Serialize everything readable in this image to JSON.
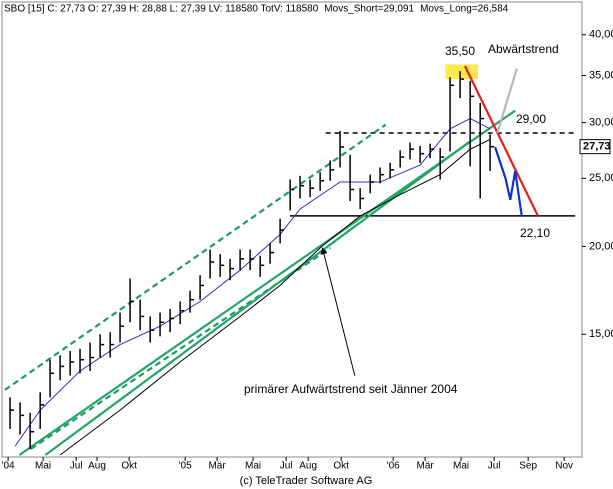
{
  "chart_data": {
    "type": "hlc",
    "header": "SBO [15] C: 27,73 O: 27,39 H: 28,88 L: 27,39 LV: 118580 TotV: 118580",
    "footer": "(c) TeleTrader Software AG",
    "log_scale": true,
    "color": "#000000",
    "xlim": [
      -0.5,
      35.3
    ],
    "ylim": [
      10.1,
      44.1
    ],
    "xticks": [
      {
        "value": 0,
        "label": "'04"
      },
      {
        "value": 2.16,
        "label": "Mai"
      },
      {
        "value": 4.2,
        "label": "Jul"
      },
      {
        "value": 5.49,
        "label": "Aug"
      },
      {
        "value": 7.47,
        "label": "Okt"
      },
      {
        "value": 10.93,
        "label": "'05"
      },
      {
        "value": 12.9,
        "label": "Mär"
      },
      {
        "value": 15.12,
        "label": "Mai"
      },
      {
        "value": 17.16,
        "label": "Jul"
      },
      {
        "value": 18.52,
        "label": "Aug"
      },
      {
        "value": 20.56,
        "label": "Okt"
      },
      {
        "value": 23.77,
        "label": "'06"
      },
      {
        "value": 25.74,
        "label": "Mär"
      },
      {
        "value": 27.96,
        "label": "Mai"
      },
      {
        "value": 30,
        "label": "Jul"
      },
      {
        "value": 32.1,
        "label": "Sep"
      },
      {
        "value": 34.32,
        "label": "Nov"
      }
    ],
    "yticks": [
      {
        "value": 15,
        "label": "15,00"
      },
      {
        "value": 20,
        "label": "20,00"
      },
      {
        "value": 25,
        "label": "25,00"
      },
      {
        "value": 30,
        "label": "30,00"
      },
      {
        "value": 35,
        "label": "35,00"
      },
      {
        "value": 40,
        "label": "40,00"
      }
    ],
    "x": [
      0.12,
      0.74,
      1.36,
      1.98,
      2.59,
      3.21,
      3.83,
      4.44,
      5.06,
      5.68,
      6.3,
      6.91,
      7.53,
      8.15,
      8.77,
      9.38,
      10.0,
      10.62,
      11.23,
      11.85,
      12.47,
      13.09,
      13.7,
      14.32,
      14.94,
      15.56,
      16.17,
      16.79,
      17.41,
      18.02,
      18.64,
      19.26,
      19.88,
      20.49,
      21.11,
      21.73,
      22.35,
      22.96,
      23.58,
      24.2,
      24.81,
      25.43,
      26.05,
      26.67,
      27.28,
      27.9,
      28.52,
      29.14,
      29.75
    ],
    "high": [
      12.2,
      12.0,
      11.6,
      12.4,
      13.8,
      14.0,
      14.2,
      14.3,
      14.6,
      15.0,
      15.1,
      16.1,
      18.0,
      16.8,
      15.9,
      16.1,
      16.3,
      16.7,
      17.3,
      18.2,
      19.8,
      19.5,
      19.2,
      19.8,
      19.8,
      19.4,
      20.2,
      21.9,
      24.9,
      25.2,
      24.9,
      25.5,
      26.5,
      29.2,
      27.0,
      24.2,
      25.3,
      25.9,
      26.3,
      27.4,
      28.1,
      27.8,
      28.0,
      27.6,
      34.8,
      35.5,
      34.4,
      32.0,
      28.88
    ],
    "low": [
      11.0,
      10.8,
      10.3,
      11.0,
      12.2,
      12.9,
      13.1,
      13.2,
      13.3,
      13.9,
      13.9,
      14.6,
      15.6,
      15.2,
      14.6,
      14.9,
      15.1,
      15.5,
      16.1,
      16.8,
      18.0,
      18.1,
      17.9,
      18.5,
      18.5,
      18.1,
      18.9,
      20.2,
      22.5,
      23.4,
      23.5,
      24.0,
      24.8,
      25.9,
      23.2,
      22.6,
      23.8,
      24.6,
      25.0,
      25.9,
      26.6,
      26.3,
      26.7,
      24.9,
      27.3,
      32.5,
      26.0,
      23.4,
      25.6
    ],
    "close": [
      11.7,
      11.5,
      10.9,
      11.9,
      13.2,
      13.5,
      13.7,
      13.8,
      13.9,
      14.5,
      14.5,
      15.4,
      16.7,
      15.9,
      15.2,
      15.6,
      15.8,
      16.2,
      16.8,
      17.6,
      19.0,
      18.8,
      18.6,
      19.2,
      19.2,
      18.8,
      19.6,
      21.1,
      24.1,
      24.4,
      24.2,
      24.8,
      25.7,
      27.7,
      24.1,
      23.4,
      24.7,
      25.3,
      25.7,
      26.8,
      27.5,
      27.1,
      27.5,
      26.8,
      33.9,
      34.6,
      32.7,
      30.4,
      27.73
    ],
    "last_value_label": "27,73",
    "series": [
      {
        "name": "Movs_Short=29,091",
        "color": "#3030c0",
        "x": [
          0.43,
          1.98,
          4.44,
          6.91,
          9.38,
          11.85,
          14.32,
          16.79,
          18.02,
          20.49,
          22.96,
          25.43,
          27.28,
          28.52,
          29.75
        ],
        "values": [
          10.4,
          11.7,
          13.3,
          14.5,
          15.4,
          16.7,
          18.5,
          20.8,
          22.6,
          24.7,
          24.7,
          26.1,
          29.4,
          30.4,
          29.4
        ]
      },
      {
        "name": "Movs_Long=26,584",
        "color": "#000000",
        "x": [
          3.21,
          6.91,
          10.62,
          14.32,
          16.79,
          19.26,
          21.73,
          24.2,
          26.67,
          28.52,
          29.75
        ],
        "values": [
          10.1,
          11.7,
          13.7,
          15.9,
          17.6,
          19.9,
          22.1,
          23.7,
          25.3,
          27.5,
          28.4
        ]
      }
    ],
    "levels": [
      {
        "value": 29,
        "label": "29,00",
        "dashed": true,
        "x": [
          19.6,
          35
        ]
      },
      {
        "value": 22.1,
        "label": "22,10",
        "dashed": false,
        "x": [
          17.4,
          35
        ]
      }
    ],
    "peak": {
      "value": 35.5,
      "label": "35,50",
      "x": [
        27,
        29
      ],
      "y": [
        34.6,
        36.3
      ],
      "color": "#ffe84a"
    },
    "trend_lines": [
      {
        "color": "#1f9a6a",
        "dashed": true,
        "x": [
          -0.2,
          23.3
        ],
        "y": [
          12.5,
          29.8
        ]
      },
      {
        "color": "#1f9a6a",
        "dashed": true,
        "x": [
          1.4,
          19.9
        ],
        "y": [
          10.3,
          19.9
        ]
      },
      {
        "color": "#23a565",
        "dashed": false,
        "x": [
          0.7,
          31.3
        ],
        "y": [
          10.1,
          31.2
        ]
      },
      {
        "color": "#23a565",
        "dashed": false,
        "x": [
          2.3,
          28.5
        ],
        "y": [
          10.1,
          28.2
        ]
      },
      {
        "color": "#e02020",
        "dashed": false,
        "x": [
          28.2,
          32.7
        ],
        "y": [
          36.1,
          22.1
        ]
      },
      {
        "color": "#1030d0",
        "dashed": false,
        "x": [
          30.06,
          30.7,
          31.0,
          31.3,
          31.7
        ],
        "y": [
          27.7,
          25.0,
          23.3,
          25.6,
          22.1
        ]
      },
      {
        "color": "#b8b8b8",
        "dashed": false,
        "x": [
          30.2,
          31.4
        ],
        "y": [
          29.0,
          35.8
        ]
      },
      {
        "color": "#000000",
        "dashed": false,
        "arrow": true,
        "x": [
          21.4,
          19.4
        ],
        "y": [
          13.1,
          19.9
        ]
      }
    ],
    "annotations": [
      "Abwärtstrend",
      "primärer Aufwärtstrend seit Jänner 2004"
    ]
  }
}
